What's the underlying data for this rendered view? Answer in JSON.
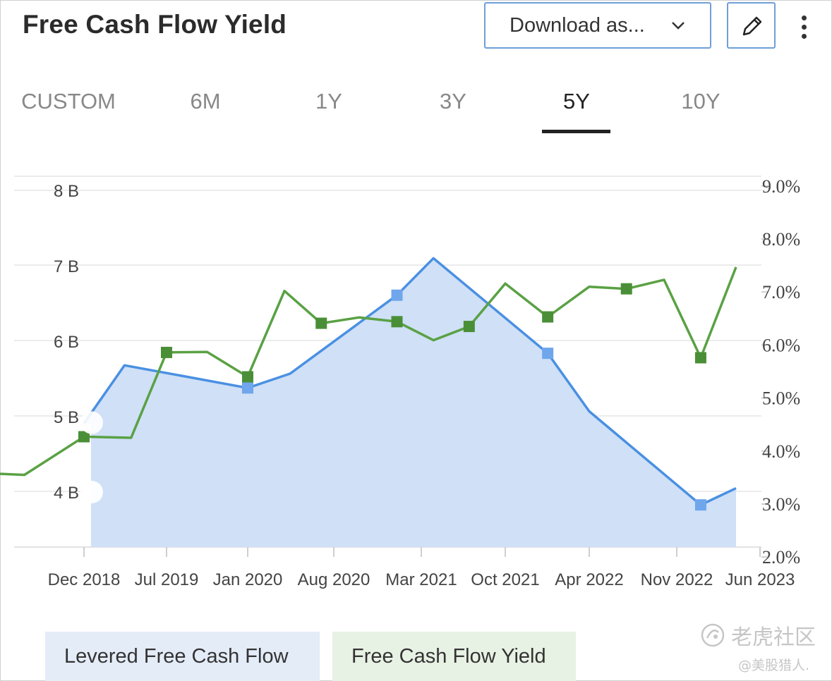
{
  "header": {
    "title": "Free Cash Flow Yield",
    "download_label": "Download as...",
    "download_icon": "chevron-down-icon",
    "edit_icon": "pencil-icon",
    "more_icon": "more-vertical-icon"
  },
  "tabs": [
    {
      "label": "CUSTOM",
      "active": false
    },
    {
      "label": "6M",
      "active": false
    },
    {
      "label": "1Y",
      "active": false
    },
    {
      "label": "3Y",
      "active": false
    },
    {
      "label": "5Y",
      "active": true
    },
    {
      "label": "10Y",
      "active": false
    }
  ],
  "legend": [
    {
      "label": "Levered Free Cash Flow",
      "color": "#4a90e2"
    },
    {
      "label": "Free Cash Flow Yield",
      "color": "#5aa144"
    }
  ],
  "watermark": {
    "name": "老虎社区",
    "user": "@美股猎人."
  },
  "chart_data": {
    "type": "line",
    "x_ticks": [
      "Dec 2018",
      "Jul 2019",
      "Jan 2020",
      "Aug 2020",
      "Mar 2021",
      "Oct 2021",
      "Apr 2022",
      "Nov 2022",
      "Jun 2023"
    ],
    "y_left": {
      "ticks": [
        "8 B",
        "7 B",
        "6 B",
        "5 B",
        "4 B"
      ],
      "range": [
        3.3,
        8.2
      ]
    },
    "y_right": {
      "ticks": [
        "9.0%",
        "8.0%",
        "7.0%",
        "6.0%",
        "5.0%",
        "4.0%",
        "3.0%",
        "2.0%"
      ],
      "range": [
        2.0,
        9.0
      ]
    },
    "grid": true,
    "series": [
      {
        "name": "Levered Free Cash Flow",
        "axis": "left",
        "color": "#4a90e2",
        "fill": "#cfe0f7",
        "points": [
          {
            "x": "2018-12-01",
            "y": 4.91,
            "marker": false
          },
          {
            "x": "2019-03-15",
            "y": 5.68,
            "marker": false
          },
          {
            "x": "2020-01-01",
            "y": 5.38,
            "marker": true
          },
          {
            "x": "2020-04-15",
            "y": 5.57,
            "marker": false
          },
          {
            "x": "2021-01-01",
            "y": 6.61,
            "marker": true
          },
          {
            "x": "2021-04-01",
            "y": 7.1,
            "marker": false
          },
          {
            "x": "2022-01-01",
            "y": 5.84,
            "marker": true
          },
          {
            "x": "2022-04-01",
            "y": 5.07,
            "marker": false
          },
          {
            "x": "2023-01-01",
            "y": 3.83,
            "marker": true
          },
          {
            "x": "2023-04-01",
            "y": 4.05,
            "marker": false
          }
        ]
      },
      {
        "name": "Free Cash Flow Yield",
        "axis": "right",
        "color": "#5aa144",
        "points": [
          {
            "x": "2018-04-01",
            "y": 3.58,
            "marker": true
          },
          {
            "x": "2018-07-01",
            "y": 3.55,
            "marker": false
          },
          {
            "x": "2018-12-01",
            "y": 4.27,
            "marker": true
          },
          {
            "x": "2019-04-01",
            "y": 4.25,
            "marker": false
          },
          {
            "x": "2019-07-01",
            "y": 5.86,
            "marker": true
          },
          {
            "x": "2019-10-01",
            "y": 5.87,
            "marker": false
          },
          {
            "x": "2020-01-01",
            "y": 5.4,
            "marker": true
          },
          {
            "x": "2020-04-01",
            "y": 7.02,
            "marker": false
          },
          {
            "x": "2020-07-01",
            "y": 6.41,
            "marker": true
          },
          {
            "x": "2020-10-01",
            "y": 6.52,
            "marker": false
          },
          {
            "x": "2021-01-01",
            "y": 6.44,
            "marker": true
          },
          {
            "x": "2021-04-01",
            "y": 6.09,
            "marker": false
          },
          {
            "x": "2021-07-01",
            "y": 6.35,
            "marker": true
          },
          {
            "x": "2021-10-01",
            "y": 7.16,
            "marker": false
          },
          {
            "x": "2022-01-01",
            "y": 6.53,
            "marker": true
          },
          {
            "x": "2022-04-01",
            "y": 7.1,
            "marker": false
          },
          {
            "x": "2022-07-01",
            "y": 7.06,
            "marker": true
          },
          {
            "x": "2022-10-01",
            "y": 7.23,
            "marker": false
          },
          {
            "x": "2023-01-01",
            "y": 5.76,
            "marker": true
          },
          {
            "x": "2023-04-01",
            "y": 7.47,
            "marker": false
          }
        ]
      }
    ]
  }
}
